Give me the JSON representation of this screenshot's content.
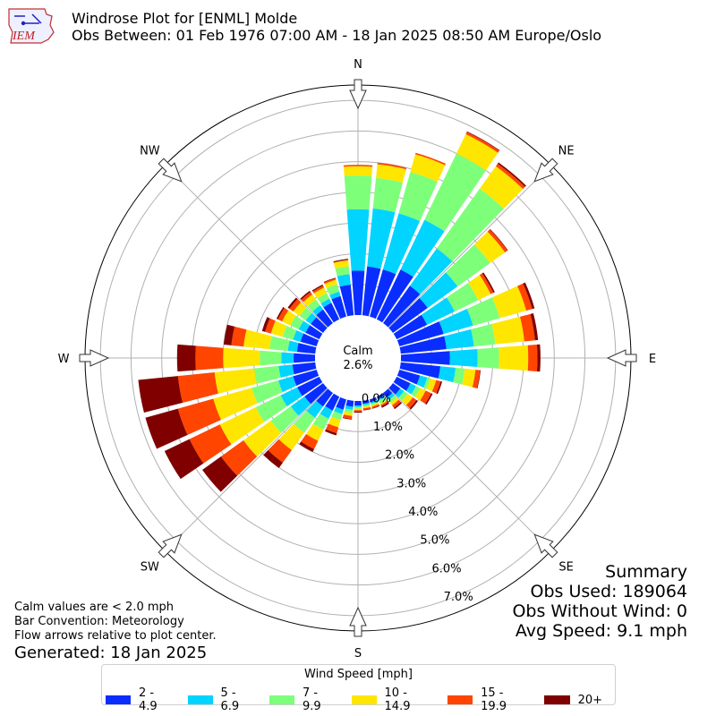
{
  "header": {
    "title_line1": "Windrose Plot for [ENML] Molde",
    "title_line2": "Obs Between: 01 Feb 1976 07:00 AM - 18 Jan 2025 08:50 AM Europe/Oslo",
    "logo_text": "IEM"
  },
  "notes": {
    "line1": "Calm values are < 2.0 mph",
    "line2": "Bar Convention: Meteorology",
    "line3": "Flow arrows relative to plot center.",
    "generated": "Generated: 18 Jan 2025"
  },
  "summary": {
    "title": "Summary",
    "obs_used": "Obs Used: 189064",
    "obs_without_wind": "Obs Without Wind: 0",
    "avg_speed": "Avg Speed: 9.1 mph"
  },
  "legend": {
    "title": "Wind Speed [mph]",
    "items": [
      {
        "label": "2 - 4.9",
        "color": "#0a2dff"
      },
      {
        "label": "5 - 6.9",
        "color": "#00d4ff"
      },
      {
        "label": "7 - 9.9",
        "color": "#7dff7a"
      },
      {
        "label": "10 - 14.9",
        "color": "#ffe600"
      },
      {
        "label": "15 - 19.9",
        "color": "#ff4500"
      },
      {
        "label": "20+",
        "color": "#800000"
      }
    ]
  },
  "chart_data": {
    "type": "windrose",
    "calm_label": "Calm",
    "calm_value": "2.6%",
    "compass_labels": [
      "N",
      "NE",
      "E",
      "SE",
      "S",
      "SW",
      "W",
      "NW"
    ],
    "radial_ticks": [
      "0.0%",
      "1.0%",
      "2.0%",
      "3.0%",
      "4.0%",
      "5.0%",
      "6.0%",
      "7.0%"
    ],
    "radial_max": 7.5,
    "speed_bins": [
      "2 - 4.9",
      "5 - 6.9",
      "7 - 9.9",
      "10 - 14.9",
      "15 - 19.9",
      "20+"
    ],
    "directions_deg": [
      0,
      10,
      20,
      30,
      40,
      50,
      60,
      70,
      80,
      90,
      100,
      110,
      120,
      130,
      140,
      150,
      160,
      170,
      180,
      190,
      200,
      210,
      220,
      230,
      240,
      250,
      260,
      270,
      280,
      290,
      300,
      310,
      320,
      330,
      340,
      350
    ],
    "cumulative_percent": [
      [
        1.45,
        3.45,
        4.55,
        4.85,
        4.9,
        4.9
      ],
      [
        1.6,
        3.5,
        4.5,
        4.95,
        5.0,
        5.0
      ],
      [
        1.6,
        3.5,
        4.9,
        5.5,
        5.55,
        5.55
      ],
      [
        1.8,
        3.6,
        6.0,
        6.7,
        6.78,
        6.8
      ],
      [
        1.5,
        3.0,
        5.4,
        6.3,
        6.4,
        6.45
      ],
      [
        1.4,
        2.6,
        3.9,
        4.5,
        4.6,
        4.62
      ],
      [
        1.1,
        2.1,
        2.95,
        3.4,
        3.5,
        3.55
      ],
      [
        1.5,
        2.5,
        3.4,
        4.3,
        4.5,
        4.58
      ],
      [
        1.5,
        2.4,
        3.1,
        4.05,
        4.4,
        4.5
      ],
      [
        1.6,
        2.5,
        3.2,
        4.15,
        4.45,
        4.55
      ],
      [
        1.3,
        1.8,
        2.1,
        2.45,
        2.6,
        2.62
      ],
      [
        0.7,
        0.95,
        1.05,
        1.25,
        1.4,
        1.45
      ],
      [
        0.5,
        0.7,
        0.85,
        1.05,
        1.25,
        1.3
      ],
      [
        0.3,
        0.45,
        0.6,
        0.8,
        0.95,
        1.0
      ],
      [
        0.2,
        0.3,
        0.4,
        0.5,
        0.6,
        0.65
      ],
      [
        0.1,
        0.15,
        0.25,
        0.3,
        0.35,
        0.4
      ],
      [
        0.1,
        0.15,
        0.2,
        0.25,
        0.3,
        0.32
      ],
      [
        0.1,
        0.15,
        0.2,
        0.25,
        0.3,
        0.32
      ],
      [
        0.15,
        0.2,
        0.25,
        0.3,
        0.35,
        0.38
      ],
      [
        0.2,
        0.3,
        0.4,
        0.5,
        0.6,
        0.62
      ],
      [
        0.35,
        0.5,
        0.7,
        0.95,
        1.15,
        1.22
      ],
      [
        0.5,
        0.8,
        1.2,
        1.6,
        1.9,
        2.0
      ],
      [
        0.55,
        1.0,
        1.6,
        2.3,
        2.8,
        3.02
      ],
      [
        0.75,
        1.3,
        2.1,
        3.2,
        4.1,
        4.85
      ],
      [
        0.8,
        1.4,
        2.3,
        3.6,
        4.7,
        5.6
      ],
      [
        0.8,
        1.3,
        2.2,
        3.5,
        4.7,
        5.8
      ],
      [
        0.75,
        1.2,
        2.0,
        3.3,
        4.5,
        5.8
      ],
      [
        0.7,
        1.1,
        1.8,
        3.0,
        3.9,
        4.5
      ],
      [
        0.6,
        0.9,
        1.5,
        2.35,
        2.75,
        3.0
      ],
      [
        0.55,
        0.8,
        1.15,
        1.55,
        1.75,
        1.85
      ],
      [
        0.5,
        0.75,
        1.05,
        1.35,
        1.5,
        1.55
      ],
      [
        0.5,
        0.7,
        0.95,
        1.2,
        1.35,
        1.42
      ],
      [
        0.55,
        0.72,
        0.95,
        1.15,
        1.25,
        1.3
      ],
      [
        0.6,
        0.75,
        0.95,
        1.15,
        1.22,
        1.26
      ],
      [
        0.7,
        0.85,
        1.1,
        1.25,
        1.3,
        1.32
      ],
      [
        1.0,
        1.35,
        1.6,
        1.8,
        1.82,
        1.85
      ]
    ]
  }
}
